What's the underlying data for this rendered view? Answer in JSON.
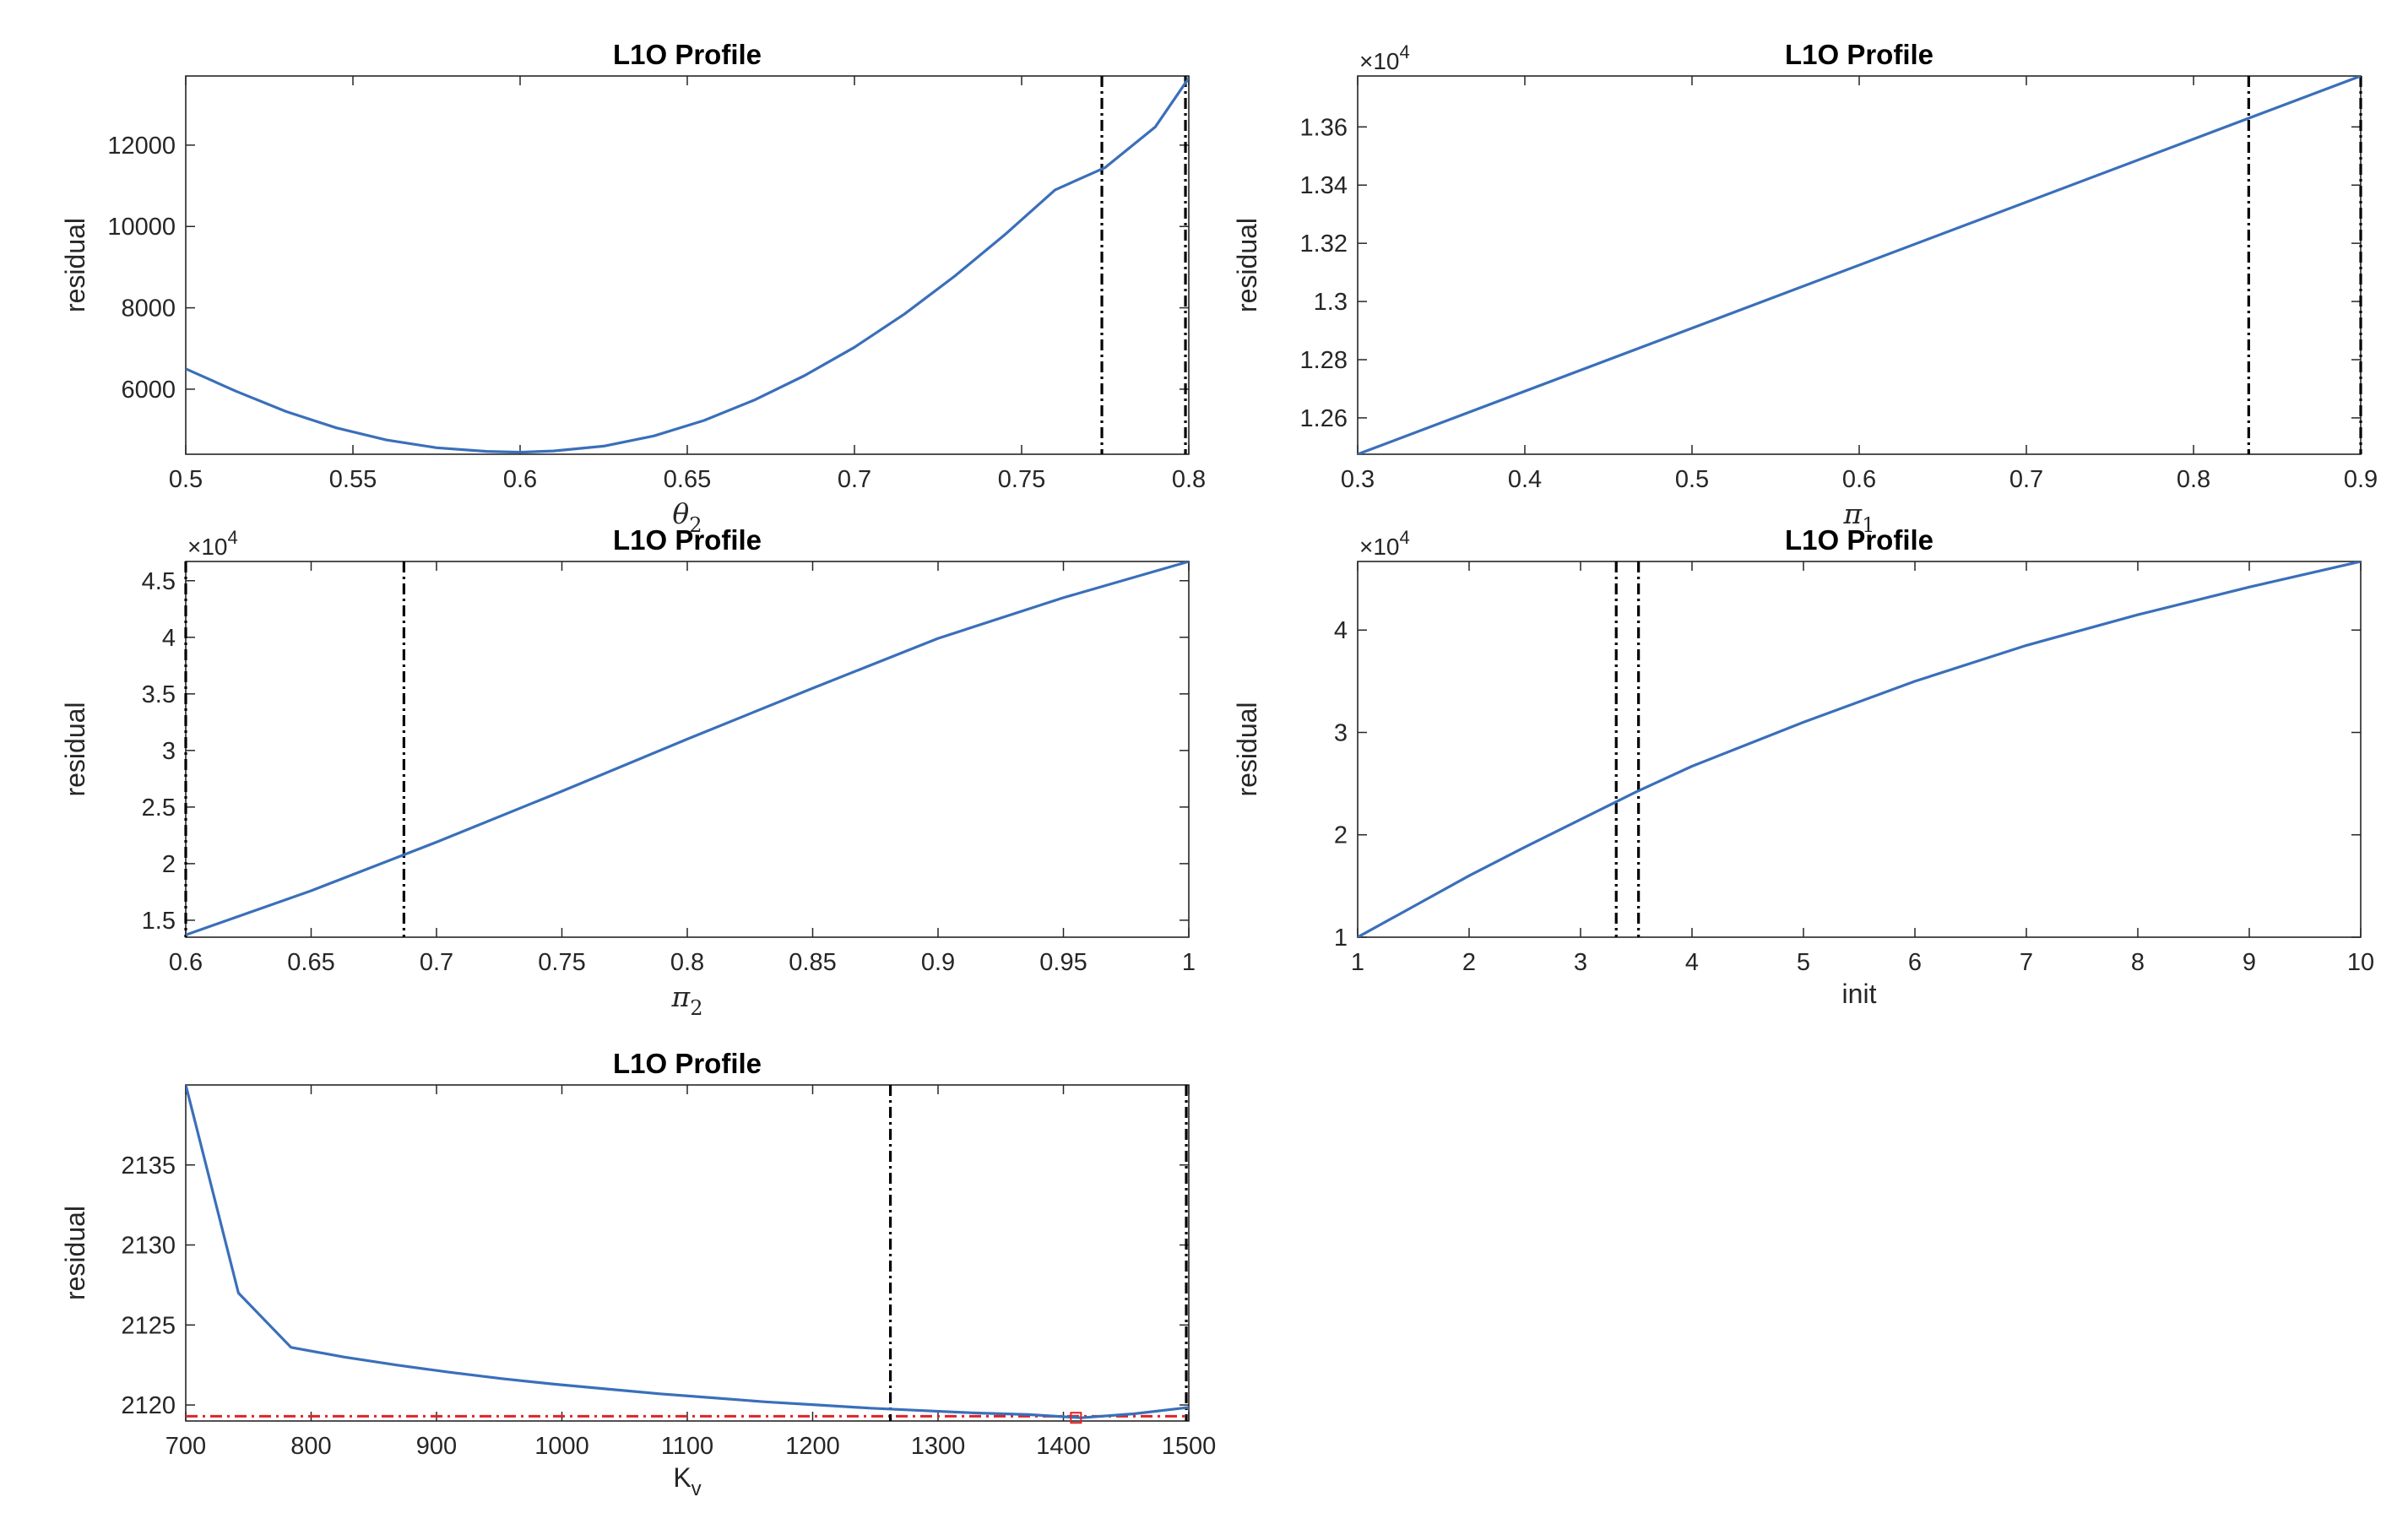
{
  "figure": {
    "panels": [
      {
        "id": "theta2",
        "title": "L1O Profile",
        "xlabel_sym": "θ",
        "xlabel_sub": "2",
        "ylabel": "residual",
        "exponent": ""
      },
      {
        "id": "pi1",
        "title": "L1O Profile",
        "xlabel_sym": "π",
        "xlabel_sub": "1",
        "ylabel": "residual",
        "exponent": "4"
      },
      {
        "id": "pi2",
        "title": "L1O Profile",
        "xlabel_sym": "π",
        "xlabel_sub": "2",
        "ylabel": "residual",
        "exponent": "4"
      },
      {
        "id": "init",
        "title": "L1O Profile",
        "xlabel_text": "init",
        "ylabel": "residual",
        "exponent": "4"
      },
      {
        "id": "kv",
        "title": "L1O Profile",
        "xlabel_text": "K",
        "xlabel_sub": "v",
        "ylabel": "residual",
        "exponent": ""
      }
    ]
  },
  "chart_data": [
    {
      "type": "line",
      "title": "L1O Profile",
      "xlabel": "θ2",
      "ylabel": "residual",
      "xlim": [
        0.5,
        0.8
      ],
      "ylim": [
        4400,
        13700
      ],
      "xticks": [
        0.5,
        0.55,
        0.6,
        0.65,
        0.7,
        0.75,
        0.8
      ],
      "xtick_labels": [
        "0.5",
        "0.55",
        "0.6",
        "0.65",
        "0.7",
        "0.75",
        "0.8"
      ],
      "yticks": [
        6000,
        8000,
        10000,
        12000
      ],
      "ytick_labels": [
        "6000",
        "8000",
        "10000",
        "12000"
      ],
      "x": [
        0.5,
        0.515,
        0.53,
        0.545,
        0.56,
        0.575,
        0.59,
        0.6,
        0.61,
        0.625,
        0.64,
        0.655,
        0.67,
        0.685,
        0.7,
        0.715,
        0.73,
        0.745,
        0.76,
        0.775,
        0.79,
        0.8
      ],
      "y": [
        6500,
        5950,
        5450,
        5050,
        4750,
        4560,
        4470,
        4450,
        4480,
        4600,
        4850,
        5230,
        5730,
        6330,
        7030,
        7850,
        8780,
        9800,
        10900,
        11450,
        12450,
        13650
      ],
      "vlines": [
        0.774,
        0.799
      ],
      "line_color": "#3a6fba",
      "grid": false
    },
    {
      "type": "line",
      "title": "L1O Profile",
      "xlabel": "π1",
      "ylabel": "residual",
      "exponent": 4,
      "xlim": [
        0.3,
        0.9
      ],
      "ylim": [
        1.2475,
        1.3775
      ],
      "xticks": [
        0.3,
        0.4,
        0.5,
        0.6,
        0.7,
        0.8,
        0.9
      ],
      "xtick_labels": [
        "0.3",
        "0.4",
        "0.5",
        "0.6",
        "0.7",
        "0.8",
        "0.9"
      ],
      "yticks": [
        1.26,
        1.28,
        1.3,
        1.32,
        1.34,
        1.36
      ],
      "ytick_labels": [
        "1.26",
        "1.28",
        "1.3",
        "1.32",
        "1.34",
        "1.36"
      ],
      "x": [
        0.3,
        0.9
      ],
      "y": [
        1.2475,
        1.3775
      ],
      "vlines": [
        0.833,
        0.9
      ],
      "line_color": "#3a6fba",
      "grid": false
    },
    {
      "type": "line",
      "title": "L1O Profile",
      "xlabel": "π2",
      "ylabel": "residual",
      "exponent": 4,
      "xlim": [
        0.6,
        1.0
      ],
      "ylim": [
        1.35,
        4.67
      ],
      "xticks": [
        0.6,
        0.65,
        0.7,
        0.75,
        0.8,
        0.85,
        0.9,
        0.95,
        1.0
      ],
      "xtick_labels": [
        "0.6",
        "0.65",
        "0.7",
        "0.75",
        "0.8",
        "0.85",
        "0.9",
        "0.95",
        "1"
      ],
      "yticks": [
        1.5,
        2,
        2.5,
        3,
        3.5,
        4,
        4.5
      ],
      "ytick_labels": [
        "1.5",
        "2",
        "2.5",
        "3",
        "3.5",
        "4",
        "4.5"
      ],
      "x": [
        0.6,
        0.65,
        0.7,
        0.75,
        0.8,
        0.85,
        0.9,
        0.95,
        1.0
      ],
      "y": [
        1.37,
        1.76,
        2.19,
        2.64,
        3.1,
        3.55,
        3.99,
        4.35,
        4.67
      ],
      "vlines": [
        0.6,
        0.687
      ],
      "line_color": "#3a6fba",
      "grid": false
    },
    {
      "type": "line",
      "title": "L1O Profile",
      "xlabel": "init",
      "ylabel": "residual",
      "exponent": 4,
      "xlim": [
        1,
        10
      ],
      "ylim": [
        1.0,
        4.67
      ],
      "xticks": [
        1,
        2,
        3,
        4,
        5,
        6,
        7,
        8,
        9,
        10
      ],
      "xtick_labels": [
        "1",
        "2",
        "3",
        "4",
        "5",
        "6",
        "7",
        "8",
        "9",
        "10"
      ],
      "yticks": [
        1,
        2,
        3,
        4
      ],
      "ytick_labels": [
        "1",
        "2",
        "3",
        "4"
      ],
      "x": [
        1,
        1.5,
        2,
        2.5,
        3,
        3.5,
        4,
        5,
        6,
        7,
        8,
        9,
        10
      ],
      "y": [
        1.0,
        1.3,
        1.6,
        1.88,
        2.15,
        2.42,
        2.67,
        3.1,
        3.5,
        3.85,
        4.15,
        4.42,
        4.67
      ],
      "vlines": [
        3.32,
        3.52
      ],
      "line_color": "#3a6fba",
      "grid": false
    },
    {
      "type": "line",
      "title": "L1O Profile",
      "xlabel": "Kv",
      "ylabel": "residual",
      "xlim": [
        700,
        1500
      ],
      "ylim": [
        2119,
        2140
      ],
      "xticks": [
        700,
        800,
        900,
        1000,
        1100,
        1200,
        1300,
        1400,
        1500
      ],
      "xtick_labels": [
        "700",
        "800",
        "900",
        "1000",
        "1100",
        "1200",
        "1300",
        "1400",
        "1500"
      ],
      "yticks": [
        2120,
        2125,
        2130,
        2135
      ],
      "ytick_labels": [
        "2120",
        "2125",
        "2130",
        "2135"
      ],
      "x": [
        700,
        742,
        784,
        826,
        868,
        910,
        952,
        994,
        1036,
        1078,
        1120,
        1162,
        1204,
        1246,
        1288,
        1330,
        1372,
        1414,
        1456,
        1500
      ],
      "y": [
        2140,
        2127,
        2123.6,
        2123,
        2122.5,
        2122.05,
        2121.65,
        2121.3,
        2121,
        2120.7,
        2120.45,
        2120.2,
        2120,
        2119.8,
        2119.65,
        2119.5,
        2119.4,
        2119.2,
        2119.45,
        2119.85
      ],
      "vlines": [
        1262,
        1498
      ],
      "hline": 2119.3,
      "hline_color": "#e0242a",
      "marker": {
        "x": 1410,
        "y": 2119.2
      },
      "line_color": "#3a6fba",
      "grid": false
    }
  ]
}
